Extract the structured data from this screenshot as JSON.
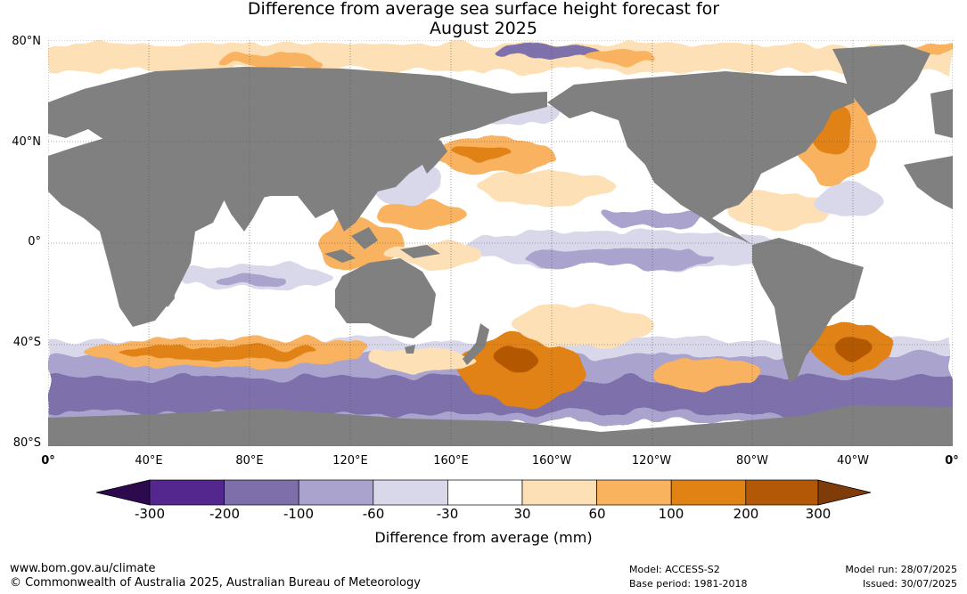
{
  "title": {
    "line1": "Difference from average sea surface height forecast for",
    "line2": "August 2025"
  },
  "axes": {
    "lat_labels": [
      "80°N",
      "40°N",
      "0°",
      "40°S",
      "80°S"
    ],
    "lon_labels": [
      "0°",
      "40°E",
      "80°E",
      "120°E",
      "160°E",
      "160°W",
      "120°W",
      "80°W",
      "40°W",
      "0°"
    ]
  },
  "colorbar": {
    "title": "Difference from average (mm)",
    "tick_labels": [
      "-300",
      "-200",
      "-100",
      "-60",
      "-30",
      "30",
      "60",
      "100",
      "200",
      "300"
    ],
    "colors": [
      "#2d0a4e",
      "#54278f",
      "#7e6fab",
      "#a9a3cd",
      "#d9d8eb",
      "#ffffff",
      "#fde0b5",
      "#f9b25e",
      "#e08214",
      "#b35806",
      "#7f3b08"
    ]
  },
  "map_colors": {
    "land": "#808080",
    "ocean": "#ffffff",
    "grid": "#555555"
  },
  "footer": {
    "url": "www.bom.gov.au/climate",
    "copyright": "© Commonwealth of Australia 2025, Australian Bureau of Meteorology",
    "model": "Model: ACCESS-S2",
    "base_period": "Base period: 1981-2018",
    "model_run": "Model run: 28/07/2025",
    "issued": "Issued: 30/07/2025"
  }
}
